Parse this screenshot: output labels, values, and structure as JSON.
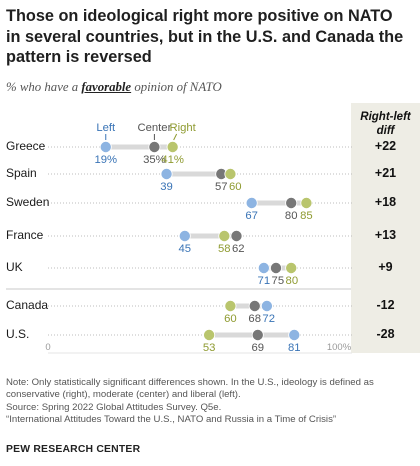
{
  "title": "Those on ideological right more positive on NATO in several countries, but in the U.S. and Canada the pattern is reversed",
  "subtitle": {
    "pre": "% who have a ",
    "emph": "favorable",
    "post": " opinion of NATO"
  },
  "diff_header": {
    "line1": "Right-left",
    "line2": "diff"
  },
  "legend": {
    "left": "Left",
    "center": "Center",
    "right": "Right"
  },
  "colors": {
    "left": "#8db4e2",
    "center": "#777777",
    "right": "#b9c56d",
    "left_text": "#3a74b6",
    "center_text": "#555555",
    "right_text": "#8f9b31",
    "bar": "#d9d9d9"
  },
  "chart_data": {
    "type": "dot",
    "xlim": [
      0,
      100
    ],
    "x_tick_labels": [
      "0",
      "100%"
    ],
    "categories": [
      "Greece",
      "Spain",
      "Sweden",
      "France",
      "UK",
      "Canada",
      "U.S."
    ],
    "series": [
      {
        "name": "Left",
        "values": [
          19,
          39,
          67,
          45,
          71,
          72,
          81
        ]
      },
      {
        "name": "Center",
        "values": [
          35,
          57,
          80,
          62,
          75,
          68,
          69
        ]
      },
      {
        "name": "Right",
        "values": [
          41,
          60,
          85,
          58,
          80,
          60,
          53
        ]
      }
    ],
    "value_labels": {
      "left": [
        "19%",
        "39",
        "67",
        "45",
        "71",
        "72",
        "81"
      ],
      "center": [
        "35%",
        "57",
        "80",
        "62",
        "75",
        "68",
        "69"
      ],
      "right": [
        "41%",
        "60",
        "85",
        "58",
        "80",
        "60",
        "53"
      ]
    },
    "right_left_diff": [
      "+22",
      "+21",
      "+18",
      "+13",
      "+9",
      "-12",
      "-28"
    ]
  },
  "notes": [
    "Note: Only statistically significant differences shown. In the U.S., ideology is defined as",
    "conservative (right), moderate (center) and liberal (left).",
    "Source: Spring 2022 Global Attitudes Survey. Q5e.",
    "“International Attitudes Toward the U.S., NATO and Russia in a Time of Crisis”"
  ],
  "source_org": "PEW RESEARCH CENTER"
}
